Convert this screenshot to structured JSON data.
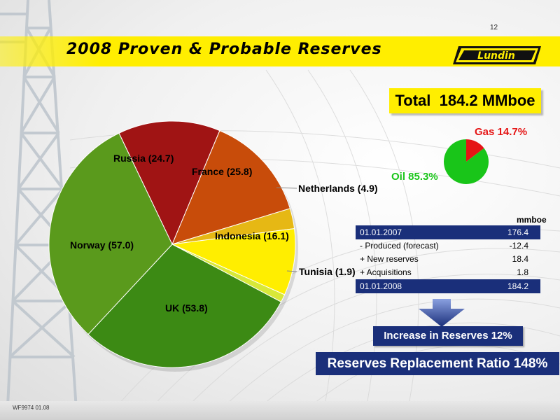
{
  "page_number": "12",
  "title": "2008 Proven & Probable Reserves",
  "logo_text": "Lundin",
  "total": {
    "label": "Total",
    "value": "184.2 MMboe"
  },
  "split": {
    "gas_label": "Gas 14.7%",
    "oil_label": "Oil 85.3%",
    "gas_percent": 14.7,
    "oil_percent": 85.3,
    "gas_color": "#e51515",
    "oil_color": "#19c519"
  },
  "table": {
    "unit": "mmboe",
    "rows": [
      {
        "label": "01.01.2007",
        "value": "176.4",
        "style": "header"
      },
      {
        "label": "- Produced (forecast)",
        "value": "-12.4",
        "style": "plain"
      },
      {
        "label": "+ New reserves",
        "value": "18.4",
        "style": "plain"
      },
      {
        "label": "+ Acquisitions",
        "value": "1.8",
        "style": "plain"
      },
      {
        "label": "01.01.2008",
        "value": "184.2",
        "style": "header"
      }
    ]
  },
  "increase_text": "Increase in Reserves 12%",
  "rrr_text": "Reserves Replacement Ratio  148%",
  "footer_code": "WF9974 01.08",
  "colors": {
    "banner": "#ffee00",
    "navy": "#1a2f7a"
  },
  "chart_data": [
    {
      "type": "pie",
      "title": "",
      "categories": [
        "Russia",
        "France",
        "Netherlands",
        "Indonesia",
        "Tunisia",
        "UK",
        "Norway"
      ],
      "values": [
        24.7,
        25.8,
        4.9,
        16.1,
        1.9,
        53.8,
        57.0
      ],
      "labels": [
        "Russia (24.7)",
        "France (25.8)",
        "Netherlands (4.9)",
        "Indonesia (16.1)",
        "Tunisia (1.9)",
        "UK (53.8)",
        "Norway (57.0)"
      ],
      "colors": [
        "#a01414",
        "#c84c0a",
        "#e6b814",
        "#ffee00",
        "#d8e838",
        "#3c8a14",
        "#5a9a1c"
      ]
    },
    {
      "type": "pie",
      "title": "",
      "categories": [
        "Gas",
        "Oil"
      ],
      "values": [
        14.7,
        85.3
      ],
      "colors": [
        "#e51515",
        "#19c519"
      ]
    }
  ]
}
